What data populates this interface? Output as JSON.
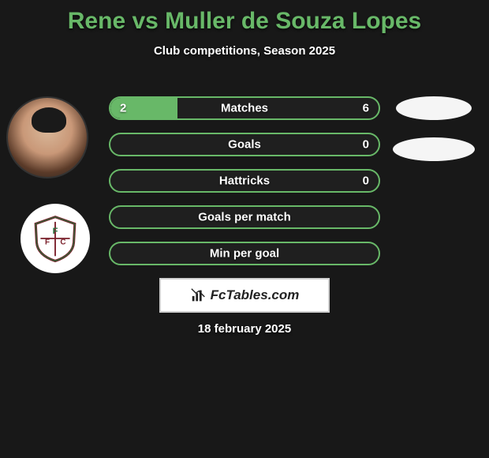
{
  "title": "Rene vs Muller de Souza Lopes",
  "subtitle": "Club competitions, Season 2025",
  "date": "18 february 2025",
  "brand": "FcTables.com",
  "colors": {
    "background": "#181818",
    "accent": "#68b868",
    "bar_border": "#68b868",
    "bar_bg": "#1f1f1f",
    "text": "#ffffff",
    "brand_box_bg": "#ffffff",
    "brand_box_border": "#cfcfcf",
    "brand_text": "#222222"
  },
  "bars": [
    {
      "label": "Matches",
      "left": "2",
      "right": "6",
      "fill_pct": 25
    },
    {
      "label": "Goals",
      "left": "",
      "right": "0",
      "fill_pct": 0
    },
    {
      "label": "Hattricks",
      "left": "",
      "right": "0",
      "fill_pct": 0
    },
    {
      "label": "Goals per match",
      "left": "",
      "right": "",
      "fill_pct": 0
    },
    {
      "label": "Min per goal",
      "left": "",
      "right": "",
      "fill_pct": 0
    }
  ]
}
